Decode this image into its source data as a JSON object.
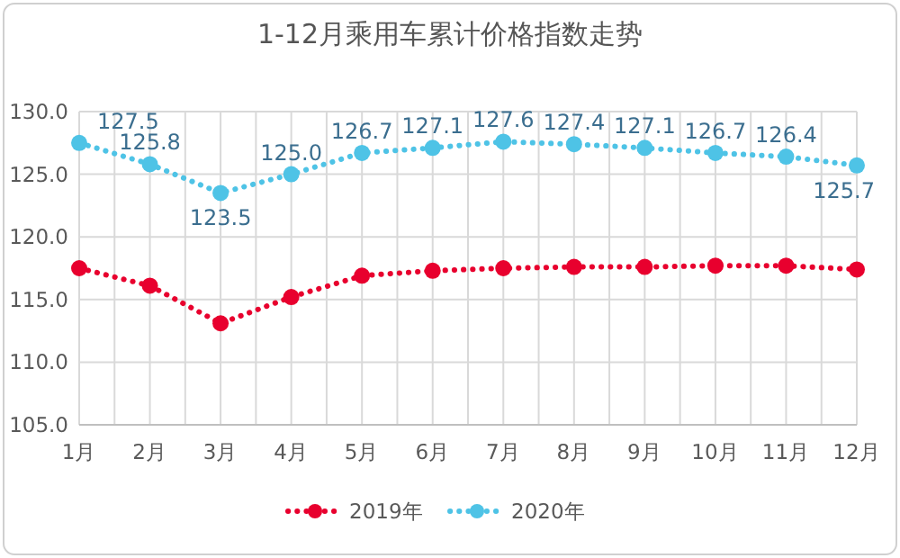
{
  "chart_data": {
    "type": "line",
    "title": "1-12月乘用车累计价格指数走势",
    "categories": [
      "1月",
      "2月",
      "3月",
      "4月",
      "5月",
      "6月",
      "7月",
      "8月",
      "9月",
      "10月",
      "11月",
      "12月"
    ],
    "series": [
      {
        "name": "2019年",
        "color": "#e8002e",
        "values": [
          117.5,
          116.1,
          113.1,
          115.2,
          116.9,
          117.3,
          117.5,
          117.6,
          117.6,
          117.7,
          117.7,
          117.4
        ]
      },
      {
        "name": "2020年",
        "color": "#4ec3e6",
        "values": [
          127.5,
          125.8,
          123.5,
          125.0,
          126.7,
          127.1,
          127.6,
          127.4,
          127.1,
          126.7,
          126.4,
          125.7
        ],
        "value_labels": [
          "127.5",
          "125.8",
          "123.5",
          "125.0",
          "126.7",
          "127.1",
          "127.6",
          "127.4",
          "127.1",
          "126.7",
          "126.4",
          "125.7"
        ]
      }
    ],
    "ylim": [
      105,
      130
    ],
    "yticks": [
      {
        "value": 105,
        "label": "105.0"
      },
      {
        "value": 110,
        "label": "110.0"
      },
      {
        "value": 115,
        "label": "115.0"
      },
      {
        "value": 120,
        "label": "120.0"
      },
      {
        "value": 125,
        "label": "125.0"
      },
      {
        "value": 130,
        "label": "130.0"
      }
    ],
    "grid": true,
    "legend": "bottom",
    "marker": "circle",
    "line_style": "dotted"
  }
}
